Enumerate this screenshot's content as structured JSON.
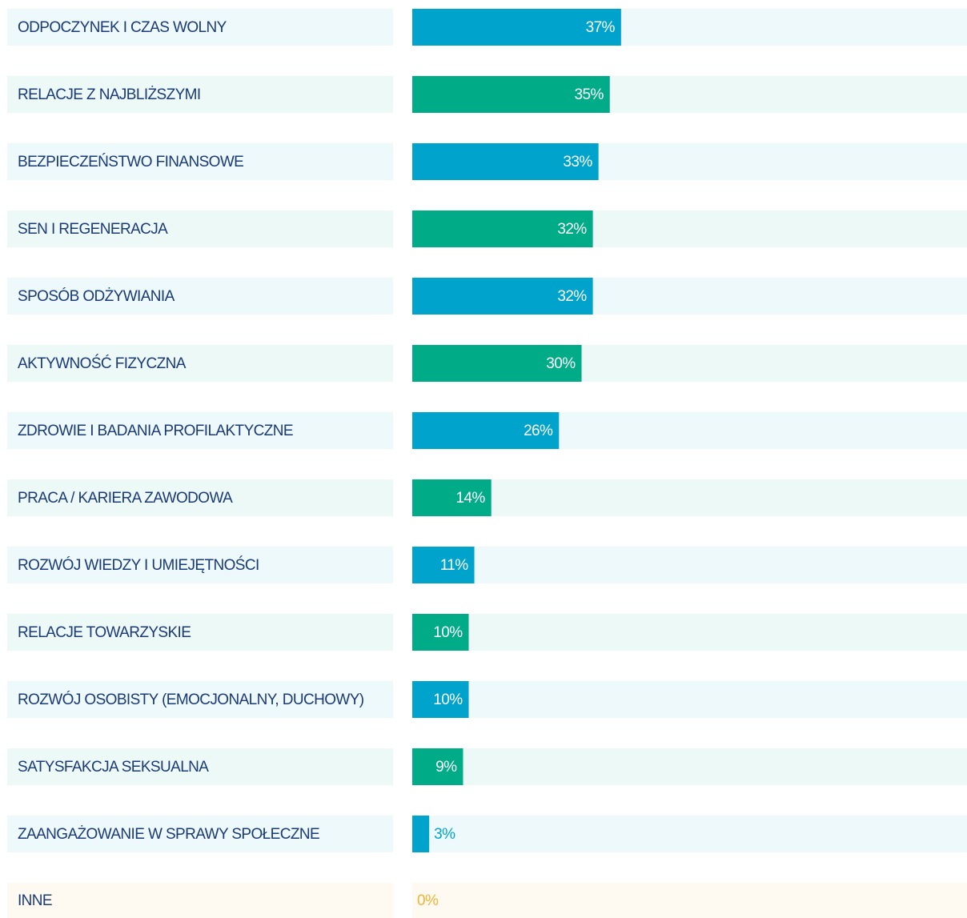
{
  "chart_data": {
    "type": "bar",
    "orientation": "horizontal",
    "categories": [
      "ODPOCZYNEK I CZAS WOLNY",
      "RELACJE Z NAJBLIŻSZYMI",
      "BEZPIECZEŃSTWO FINANSOWE",
      "SEN I REGENERACJA",
      "SPOSÓB ODŻYWIANIA",
      "AKTYWNOŚĆ FIZYCZNA",
      "ZDROWIE I BADANIA PROFILAKTYCZNE",
      "PRACA / KARIERA ZAWODOWA",
      "ROZWÓJ WIEDZY I UMIEJĘTNOŚCI",
      "RELACJE TOWARZYSKIE",
      "ROZWÓJ OSOBISTY (EMOCJONALNY, DUCHOWY)",
      "SATYSFAKCJA SEKSUALNA",
      "ZAANGAŻOWANIE W SPRAWY SPOŁECZNE",
      "INNE"
    ],
    "values": [
      37,
      35,
      33,
      32,
      32,
      30,
      26,
      14,
      11,
      10,
      10,
      9,
      3,
      0
    ],
    "value_labels": [
      "37%",
      "35%",
      "33%",
      "32%",
      "32%",
      "30%",
      "26%",
      "14%",
      "11%",
      "10%",
      "10%",
      "9%",
      "3%",
      "0%"
    ],
    "colors": [
      "#00a3cc",
      "#00ab87",
      "#00a3cc",
      "#00ab87",
      "#00a3cc",
      "#00ab87",
      "#00a3cc",
      "#00ab87",
      "#00a3cc",
      "#00ab87",
      "#00a3cc",
      "#00ab87",
      "#00a3cc",
      "#f5b335"
    ]
  }
}
